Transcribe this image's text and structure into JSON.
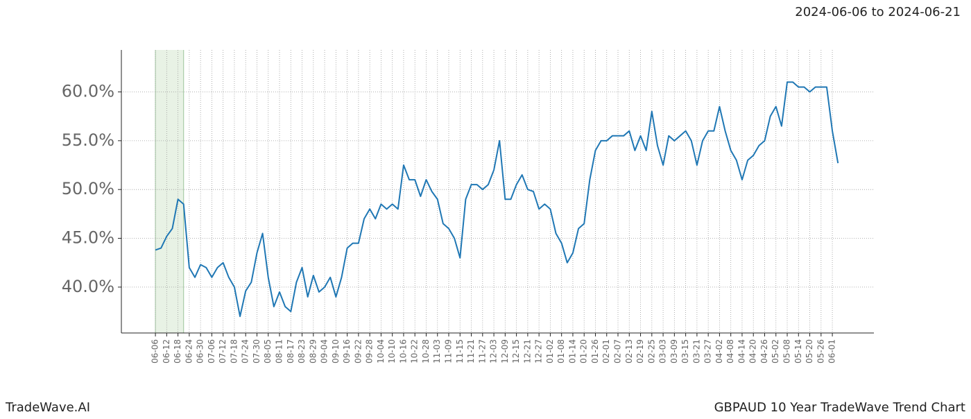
{
  "chart_data": {
    "type": "line",
    "title": "GBPAUD 10 Year TradeWave Trend Chart",
    "date_range": "2024-06-06 to 2024-06-21",
    "brand": "TradeWave.AI",
    "highlight_range": [
      0,
      15
    ],
    "highlight_color": "#d9ead3",
    "grid": true,
    "xlim": [
      -18.1,
      382.1
    ],
    "ylim": [
      35.3,
      64.3
    ],
    "yticks": [
      {
        "value": 40,
        "label": "40.0%"
      },
      {
        "value": 45,
        "label": "45.0%"
      },
      {
        "value": 50,
        "label": "50.0%"
      },
      {
        "value": 55,
        "label": "55.0%"
      },
      {
        "value": 60,
        "label": "60.0%"
      }
    ],
    "xticks": [
      {
        "value": 0,
        "label": "06-06"
      },
      {
        "value": 6,
        "label": "06-12"
      },
      {
        "value": 12,
        "label": "06-18"
      },
      {
        "value": 18,
        "label": "06-24"
      },
      {
        "value": 24,
        "label": "06-30"
      },
      {
        "value": 30,
        "label": "07-06"
      },
      {
        "value": 36,
        "label": "07-12"
      },
      {
        "value": 42,
        "label": "07-18"
      },
      {
        "value": 48,
        "label": "07-24"
      },
      {
        "value": 54,
        "label": "07-30"
      },
      {
        "value": 60,
        "label": "08-05"
      },
      {
        "value": 66,
        "label": "08-11"
      },
      {
        "value": 72,
        "label": "08-17"
      },
      {
        "value": 78,
        "label": "08-23"
      },
      {
        "value": 84,
        "label": "08-29"
      },
      {
        "value": 90,
        "label": "09-04"
      },
      {
        "value": 96,
        "label": "09-10"
      },
      {
        "value": 102,
        "label": "09-16"
      },
      {
        "value": 108,
        "label": "09-22"
      },
      {
        "value": 114,
        "label": "09-28"
      },
      {
        "value": 120,
        "label": "10-04"
      },
      {
        "value": 126,
        "label": "10-10"
      },
      {
        "value": 132,
        "label": "10-16"
      },
      {
        "value": 138,
        "label": "10-22"
      },
      {
        "value": 144,
        "label": "10-28"
      },
      {
        "value": 150,
        "label": "11-03"
      },
      {
        "value": 156,
        "label": "11-09"
      },
      {
        "value": 162,
        "label": "11-15"
      },
      {
        "value": 168,
        "label": "11-21"
      },
      {
        "value": 174,
        "label": "11-27"
      },
      {
        "value": 180,
        "label": "12-03"
      },
      {
        "value": 186,
        "label": "12-09"
      },
      {
        "value": 192,
        "label": "12-15"
      },
      {
        "value": 198,
        "label": "12-21"
      },
      {
        "value": 204,
        "label": "12-27"
      },
      {
        "value": 210,
        "label": "01-02"
      },
      {
        "value": 216,
        "label": "01-08"
      },
      {
        "value": 222,
        "label": "01-14"
      },
      {
        "value": 228,
        "label": "01-20"
      },
      {
        "value": 234,
        "label": "01-26"
      },
      {
        "value": 240,
        "label": "02-01"
      },
      {
        "value": 246,
        "label": "02-07"
      },
      {
        "value": 252,
        "label": "02-13"
      },
      {
        "value": 258,
        "label": "02-19"
      },
      {
        "value": 264,
        "label": "02-25"
      },
      {
        "value": 270,
        "label": "03-03"
      },
      {
        "value": 276,
        "label": "03-09"
      },
      {
        "value": 282,
        "label": "03-15"
      },
      {
        "value": 288,
        "label": "03-21"
      },
      {
        "value": 294,
        "label": "03-27"
      },
      {
        "value": 300,
        "label": "04-02"
      },
      {
        "value": 306,
        "label": "04-08"
      },
      {
        "value": 312,
        "label": "04-14"
      },
      {
        "value": 318,
        "label": "04-20"
      },
      {
        "value": 324,
        "label": "04-26"
      },
      {
        "value": 330,
        "label": "05-02"
      },
      {
        "value": 336,
        "label": "05-08"
      },
      {
        "value": 342,
        "label": "05-14"
      },
      {
        "value": 348,
        "label": "05-20"
      },
      {
        "value": 354,
        "label": "05-26"
      },
      {
        "value": 360,
        "label": "06-01"
      }
    ],
    "x": [
      0,
      3,
      6,
      9,
      12,
      15,
      18,
      21,
      24,
      27,
      30,
      33,
      36,
      39,
      42,
      45,
      48,
      51,
      54,
      57,
      60,
      63,
      66,
      69,
      72,
      75,
      78,
      81,
      84,
      87,
      90,
      93,
      96,
      99,
      102,
      105,
      108,
      111,
      114,
      117,
      120,
      123,
      126,
      129,
      132,
      135,
      138,
      141,
      144,
      147,
      150,
      153,
      156,
      159,
      162,
      165,
      168,
      171,
      174,
      177,
      180,
      183,
      186,
      189,
      192,
      195,
      198,
      201,
      204,
      207,
      210,
      213,
      216,
      219,
      222,
      225,
      228,
      231,
      234,
      237,
      240,
      243,
      246,
      249,
      252,
      255,
      258,
      261,
      264,
      267,
      270,
      273,
      276,
      279,
      282,
      285,
      288,
      291,
      294,
      297,
      300,
      303,
      306,
      309,
      312,
      315,
      318,
      321,
      324,
      327,
      330,
      333,
      336,
      339,
      342,
      345,
      348,
      351,
      354,
      357,
      360,
      363
    ],
    "series": [
      {
        "color": "#1f77b4",
        "values": [
          43.8,
          44,
          45.2,
          46,
          49,
          48.5,
          42,
          41,
          42.3,
          42,
          41,
          42,
          42.5,
          41,
          40,
          37,
          39.6,
          40.5,
          43.5,
          45.5,
          41,
          38,
          39.5,
          38,
          37.5,
          40.5,
          42,
          39,
          41.2,
          39.5,
          40,
          41,
          39,
          41,
          44,
          44.5,
          44.5,
          47,
          48,
          47,
          48.5,
          48,
          48.5,
          48,
          52.5,
          51,
          51,
          49.3,
          51,
          49.8,
          49,
          46.5,
          46,
          45,
          43,
          49,
          50.5,
          50.5,
          50,
          50.5,
          52,
          55,
          49,
          49,
          50.5,
          51.5,
          50,
          49.8,
          48,
          48.5,
          48,
          45.5,
          44.5,
          42.5,
          43.5,
          46,
          46.5,
          51,
          54,
          55,
          55,
          55.5,
          55.5,
          55.5,
          56,
          54,
          55.5,
          54,
          58,
          54.5,
          52.5,
          55.5,
          55,
          55.5,
          56,
          55,
          52.5,
          55,
          56,
          56,
          58.5,
          56,
          54,
          53,
          51,
          53,
          53.5,
          54.5,
          55,
          57.5,
          58.5,
          56.5,
          61,
          61,
          60.5,
          60.5,
          60,
          60.5,
          60.5,
          60.5,
          56,
          52.7
        ]
      }
    ]
  }
}
